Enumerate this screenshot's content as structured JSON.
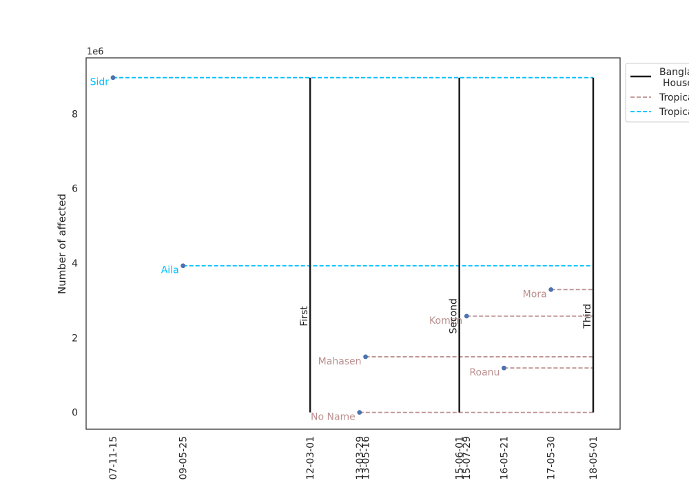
{
  "chart_data": {
    "type": "line",
    "title": "",
    "xlabel": "",
    "ylabel": "Number of affected",
    "y_offset_label": "1e6",
    "ylim": [
      -0.45,
      9.5
    ],
    "xlim": [
      "2007-04-15",
      "2018-12-01"
    ],
    "x_ticks": [
      "2007-11-15",
      "2009-05-25",
      "2012-03-01",
      "2013-03-29",
      "2013-05-16",
      "2015-06-01",
      "2015-07-29",
      "2016-05-21",
      "2017-05-30",
      "2018-05-01"
    ],
    "x_tick_labels": [
      "07-11-15",
      "09-05-25",
      "12-03-01",
      "13-03-29",
      "13-05-16",
      "15-06-01",
      "15-07-29",
      "16-05-21",
      "17-05-30",
      "18-05-01"
    ],
    "y_ticks": [
      0,
      2,
      4,
      6,
      8
    ],
    "grid": false,
    "legend_position": "upper-right-outside",
    "legend": [
      {
        "label": "Bangla\nHouse",
        "style": "solid",
        "color": "#1a1a1a"
      },
      {
        "label": "Tropica",
        "style": "dashed",
        "color": "#bc8f8f"
      },
      {
        "label": "Tropica",
        "style": "dashed",
        "color": "#00bfff"
      }
    ],
    "vertical_lines": [
      {
        "x": "2012-03-01",
        "label": "First",
        "ymin": 0,
        "ymax": 8.97
      },
      {
        "x": "2015-06-01",
        "label": "Second",
        "ymin": 0,
        "ymax": 8.97
      },
      {
        "x": "2018-05-01",
        "label": "Third",
        "ymin": 0,
        "ymax": 8.97
      }
    ],
    "series": [
      {
        "name": "Sidr",
        "date": "2007-11-15",
        "y": 8.97,
        "color": "#00bfff"
      },
      {
        "name": "Aila",
        "date": "2009-05-25",
        "y": 3.93,
        "color": "#00bfff"
      },
      {
        "name": "No Name",
        "date": "2013-03-29",
        "y": 0.0,
        "color": "#bc8f8f"
      },
      {
        "name": "Mahasen",
        "date": "2013-05-16",
        "y": 1.49,
        "color": "#bc8f8f"
      },
      {
        "name": "Komen",
        "date": "2015-07-29",
        "y": 2.58,
        "color": "#bc8f8f"
      },
      {
        "name": "Roanu",
        "date": "2016-05-21",
        "y": 1.19,
        "color": "#bc8f8f"
      },
      {
        "name": "Mora",
        "date": "2017-05-30",
        "y": 3.29,
        "color": "#bc8f8f"
      }
    ],
    "series_end_date": "2018-05-01",
    "point_color": "#4c72b0"
  }
}
